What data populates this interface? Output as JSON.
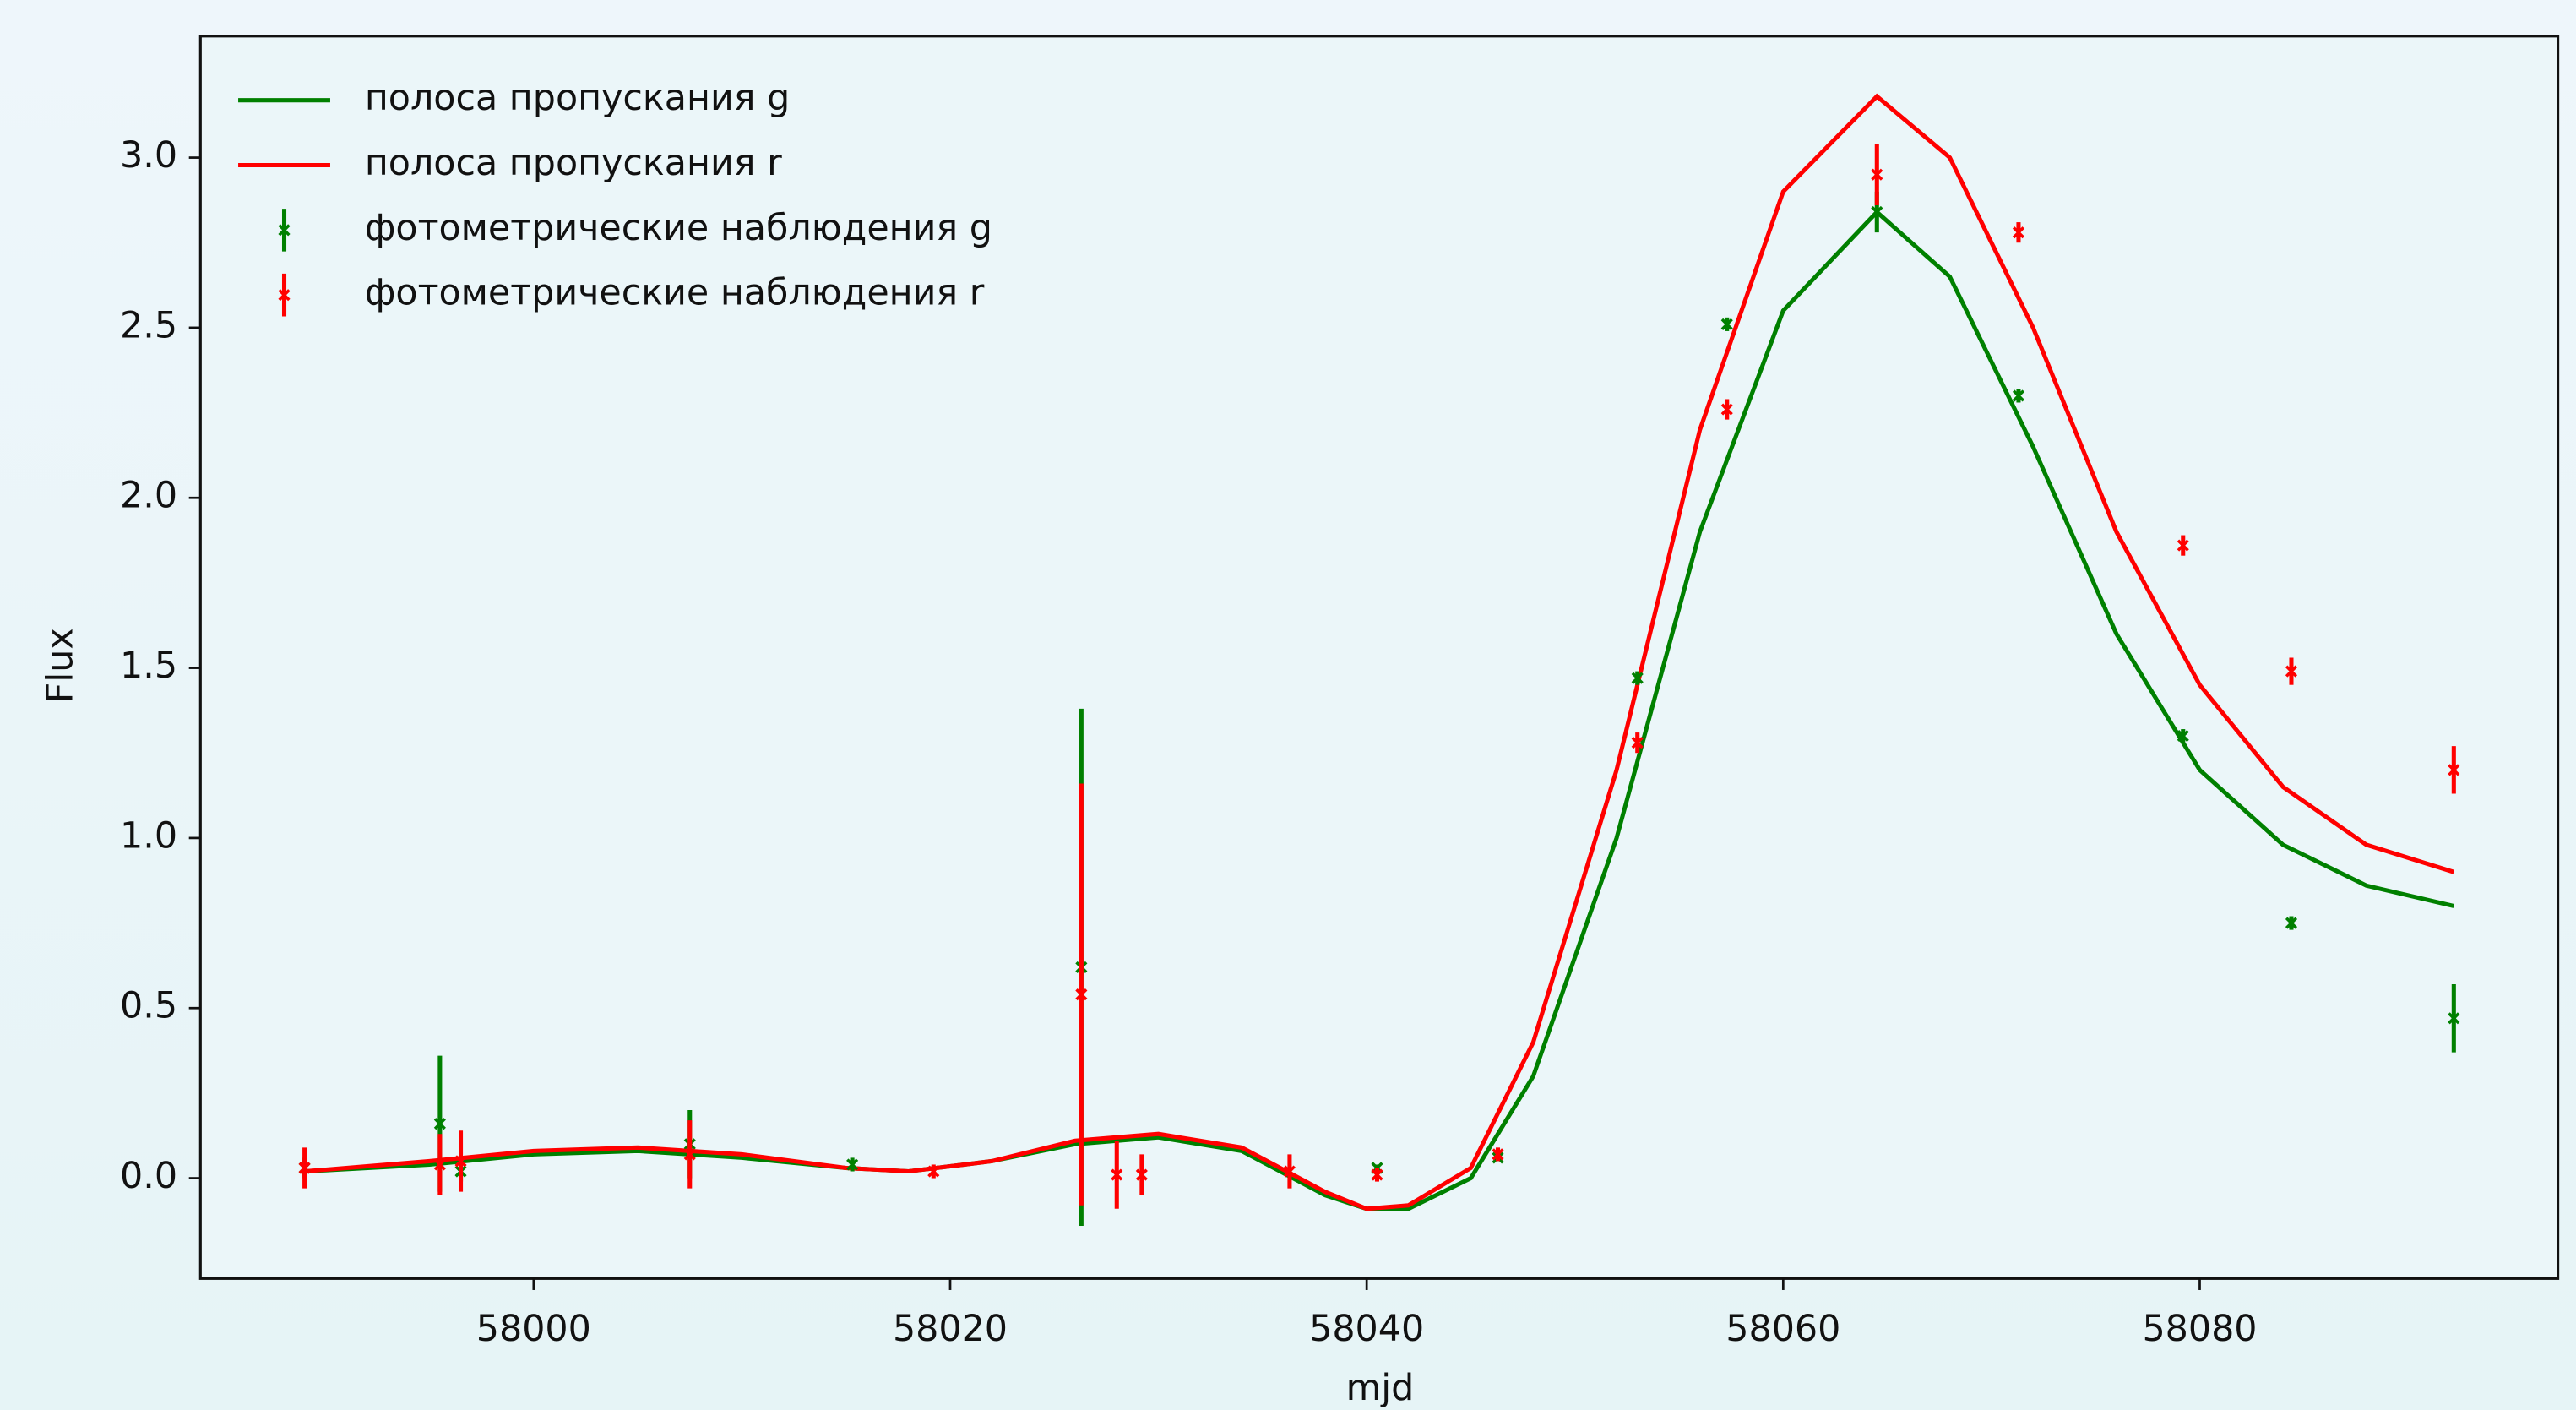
{
  "chart_data": {
    "type": "line",
    "xlabel": "mjd",
    "ylabel": "Flux",
    "xlim": [
      57984.0,
      58097.2
    ],
    "ylim": [
      -0.295,
      3.357
    ],
    "xticks": [
      58000,
      58020,
      58040,
      58060,
      58080
    ],
    "yticks": [
      {
        "value": 0,
        "label": "0.0"
      },
      0.5,
      {
        "value": 1,
        "label": "1.0"
      },
      1.5,
      {
        "value": 2,
        "label": "2.0"
      },
      2.5,
      {
        "value": 3,
        "label": "3.0"
      }
    ],
    "legend": "upper left",
    "series": [
      {
        "name": "полоса пропускания g",
        "type": "line",
        "color": "#008000",
        "x": [
          57989,
          57995,
          58000,
          58005,
          58010,
          58015,
          58018,
          58022,
          58026,
          58030,
          58034,
          58038,
          58040,
          58042,
          58045,
          58048,
          58052,
          58056,
          58060,
          58064.5,
          58068,
          58072,
          58076,
          58080,
          58084,
          58088,
          58092.2
        ],
        "values": [
          0.02,
          0.04,
          0.07,
          0.08,
          0.06,
          0.03,
          0.02,
          0.05,
          0.1,
          0.12,
          0.08,
          -0.05,
          -0.09,
          -0.09,
          0.0,
          0.3,
          1.0,
          1.9,
          2.55,
          2.84,
          2.65,
          2.15,
          1.6,
          1.2,
          0.98,
          0.86,
          0.8
        ]
      },
      {
        "name": "полоса пропускания r",
        "type": "line",
        "color": "#ff0000",
        "x": [
          57989,
          57995,
          58000,
          58005,
          58010,
          58015,
          58018,
          58022,
          58026,
          58030,
          58034,
          58038,
          58040,
          58042,
          58045,
          58048,
          58052,
          58056,
          58060,
          58064.5,
          58068,
          58072,
          58076,
          58080,
          58084,
          58088,
          58092.2
        ],
        "values": [
          0.02,
          0.05,
          0.08,
          0.09,
          0.07,
          0.03,
          0.02,
          0.05,
          0.11,
          0.13,
          0.09,
          -0.04,
          -0.09,
          -0.08,
          0.03,
          0.4,
          1.2,
          2.2,
          2.9,
          3.18,
          3.0,
          2.5,
          1.9,
          1.45,
          1.15,
          0.98,
          0.9
        ]
      },
      {
        "name": "фотометрические наблюдения g",
        "type": "errorbar",
        "color": "#008000",
        "x": [
          57989,
          57995.5,
          57996.5,
          58007.5,
          58015.3,
          58026.3,
          58040.5,
          58046.3,
          58053,
          58057.3,
          58064.5,
          58071.3,
          58079.2,
          58084.4,
          58092.2
        ],
        "values": [
          0.03,
          0.16,
          0.02,
          0.1,
          0.04,
          0.62,
          0.03,
          0.06,
          1.47,
          2.51,
          2.84,
          2.3,
          1.3,
          0.75,
          0.47
        ],
        "errors": [
          0.03,
          0.2,
          0.03,
          0.1,
          0.02,
          0.76,
          0.01,
          0.01,
          0.02,
          0.02,
          0.06,
          0.02,
          0.02,
          0.02,
          0.1
        ]
      },
      {
        "name": "фотометрические наблюдения r",
        "type": "errorbar",
        "color": "#ff0000",
        "x": [
          57989,
          57995.5,
          57996.5,
          58007.5,
          58019.2,
          58026.3,
          58028,
          58029.2,
          58036.3,
          58040.5,
          58046.3,
          58053,
          58057.3,
          58064.5,
          58071.3,
          58079.2,
          58084.4,
          58092.2
        ],
        "values": [
          0.03,
          0.04,
          0.05,
          0.07,
          0.02,
          0.54,
          0.01,
          0.01,
          0.02,
          0.01,
          0.07,
          1.28,
          2.26,
          2.95,
          2.78,
          1.86,
          1.49,
          1.2
        ],
        "errors": [
          0.06,
          0.09,
          0.09,
          0.1,
          0.02,
          0.62,
          0.1,
          0.06,
          0.05,
          0.02,
          0.02,
          0.03,
          0.03,
          0.09,
          0.03,
          0.03,
          0.04,
          0.07
        ]
      }
    ]
  }
}
